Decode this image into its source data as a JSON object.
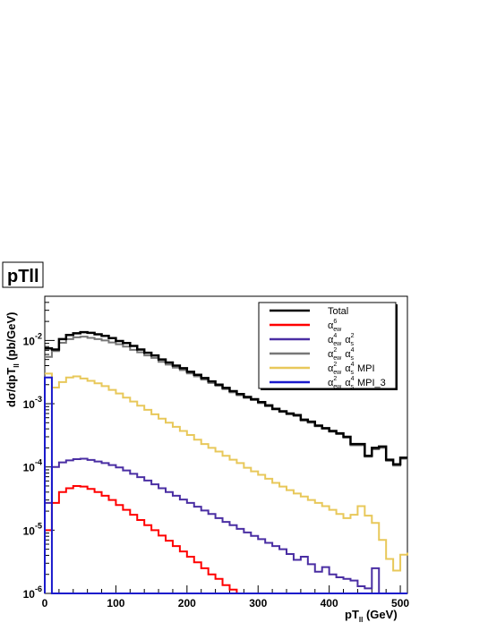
{
  "chart_data": {
    "type": "line",
    "title": "pTll",
    "xlabel": "pT_ll (GeV)",
    "ylabel": "dσ/dpT_ll (pb/GeV)",
    "xlim": [
      0,
      510
    ],
    "ylim": [
      1e-06,
      0.05
    ],
    "yscale": "log",
    "bin_width": 10,
    "x_ticks": [
      0,
      100,
      200,
      300,
      400,
      500
    ],
    "y_ticks": [
      {
        "base": "10",
        "exp": "-6",
        "value": 1e-06
      },
      {
        "base": "10",
        "exp": "-5",
        "value": 1e-05
      },
      {
        "base": "10",
        "exp": "-4",
        "value": 0.0001
      },
      {
        "base": "10",
        "exp": "-3",
        "value": 0.001
      },
      {
        "base": "10",
        "exp": "-2",
        "value": 0.01
      }
    ],
    "legend_position": "top-right",
    "series": [
      {
        "name": "Total",
        "label": {
          "parts": [
            {
              "t": "Total"
            }
          ]
        },
        "color": "#000000",
        "x_start": 0,
        "values": [
          0.0075,
          0.0072,
          0.0105,
          0.0122,
          0.013,
          0.0135,
          0.0132,
          0.0125,
          0.0118,
          0.0109,
          0.0098,
          0.0091,
          0.0082,
          0.0072,
          0.0064,
          0.0058,
          0.005,
          0.00448,
          0.004,
          0.00364,
          0.0032,
          0.00286,
          0.00254,
          0.00225,
          0.002,
          0.00178,
          0.00158,
          0.00142,
          0.00128,
          0.00118,
          0.00106,
          0.00094,
          0.00083,
          0.00076,
          0.0007,
          0.00066,
          0.00056,
          0.00052,
          0.00045,
          0.00041,
          0.00037,
          0.00034,
          0.0003,
          0.00023,
          0.00023,
          0.00015,
          0.0002,
          0.00021,
          0.00013,
          0.00011,
          0.00014
        ]
      },
      {
        "name": "α_ew^6",
        "label": {
          "parts": [
            {
              "t": "α"
            },
            {
              "sub": "ew",
              "sup": "6"
            }
          ]
        },
        "color": "#ff0000",
        "x_start": 0,
        "values": [
          1e-05,
          2.7e-05,
          4e-05,
          4.6e-05,
          5e-05,
          4.9e-05,
          4.5e-05,
          4e-05,
          3.5e-05,
          3e-05,
          2.5e-05,
          2.1e-05,
          1.75e-05,
          1.45e-05,
          1.2e-05,
          1e-05,
          8.2e-06,
          6.8e-06,
          5.6e-06,
          4.6e-06,
          3.8e-06,
          3.1e-06,
          2.5e-06,
          2e-06,
          1.7e-06,
          1.35e-06,
          1.15e-06,
          1e-06,
          1e-06,
          1e-06
        ]
      },
      {
        "name": "α_ew^4 α_s^2",
        "label": {
          "parts": [
            {
              "t": "α"
            },
            {
              "sub": "ew",
              "sup": "4"
            },
            {
              "t": " α"
            },
            {
              "sub": "s",
              "sup": "2"
            }
          ]
        },
        "color": "#4a2ea3",
        "x_start": 0,
        "values": [
          2.7e-05,
          0.0001,
          0.000118,
          0.000127,
          0.000133,
          0.000135,
          0.000129,
          0.000122,
          0.000115,
          0.000107,
          9.8e-05,
          8.8e-05,
          7.8e-05,
          6.9e-05,
          6.1e-05,
          5.3e-05,
          4.6e-05,
          4e-05,
          3.5e-05,
          3.05e-05,
          2.7e-05,
          2.35e-05,
          2.05e-05,
          1.8e-05,
          1.55e-05,
          1.35e-05,
          1.2e-05,
          1.05e-05,
          9.2e-06,
          8.1e-06,
          7.2e-06,
          6.3e-06,
          5.6e-06,
          5e-06,
          4.2e-06,
          3.4e-06,
          3.8e-06,
          2.9e-06,
          2.2e-06,
          2.6e-06,
          2e-06,
          1.8e-06,
          1.7e-06,
          1.6e-06,
          1.3e-06,
          1.2e-06,
          2.5e-06,
          1e-06
        ]
      },
      {
        "name": "α_ew^2 α_s^4",
        "label": {
          "parts": [
            {
              "t": "α"
            },
            {
              "sub": "ew",
              "sup": "2"
            },
            {
              "t": " α"
            },
            {
              "sub": "s",
              "sup": "4"
            }
          ]
        },
        "color": "#777777",
        "x_start": 0,
        "values": [
          0.0055,
          0.0068,
          0.0092,
          0.0105,
          0.0112,
          0.0115,
          0.011,
          0.0105,
          0.01,
          0.0093,
          0.0087,
          0.008,
          0.0071,
          0.0065,
          0.0058,
          0.0053,
          0.0046,
          0.00415,
          0.00372,
          0.0034,
          0.00301,
          0.0027,
          0.0024,
          0.00213,
          0.00191,
          0.0017,
          0.00151,
          0.00136,
          0.00123,
          0.00114,
          0.00102,
          0.00091,
          0.00081,
          0.00074,
          0.00068,
          0.00064,
          0.00054,
          0.0005,
          0.00044,
          0.0004,
          0.00036,
          0.00033,
          0.00029,
          0.00022,
          0.00022,
          0.000145,
          0.00019,
          0.0002,
          0.000125,
          0.000105,
          0.000135
        ]
      },
      {
        "name": "α_ew^2 α_s^4 MPI",
        "label": {
          "parts": [
            {
              "t": "α"
            },
            {
              "sub": "ew",
              "sup": "2"
            },
            {
              "t": " α"
            },
            {
              "sub": "s",
              "sup": "4"
            },
            {
              "t": " MPI"
            }
          ]
        },
        "color": "#e8c85a",
        "x_start": 0,
        "values": [
          0.003,
          0.0018,
          0.0022,
          0.0026,
          0.0027,
          0.0025,
          0.0023,
          0.0021,
          0.0019,
          0.00165,
          0.00145,
          0.00125,
          0.00108,
          0.00093,
          0.0008,
          0.00068,
          0.00058,
          0.0005,
          0.00043,
          0.00037,
          0.00032,
          0.00027,
          0.00023,
          0.0002,
          0.000175,
          0.00015,
          0.00013,
          0.000115,
          9.7e-05,
          8.5e-05,
          7.5e-05,
          6.5e-05,
          5.6e-05,
          4.9e-05,
          4.3e-05,
          3.8e-05,
          3.4e-05,
          3e-05,
          2.7e-05,
          2.4e-05,
          2.1e-05,
          1.8e-05,
          1.55e-05,
          1.75e-05,
          2.4e-05,
          1.7e-05,
          1.3e-05,
          7e-06,
          3.5e-06,
          2.3e-06,
          4.1e-06,
          4.4e-06
        ]
      },
      {
        "name": "α_ew^2 α_s^4 MPI_3",
        "label": {
          "parts": [
            {
              "t": "α"
            },
            {
              "sub": "ew",
              "sup": "2"
            },
            {
              "t": " α"
            },
            {
              "sub": "s",
              "sup": "4"
            },
            {
              "t": " MPI_3"
            }
          ]
        },
        "color": "#1a1acc",
        "x_start": 0,
        "values": [
          0.0026
        ]
      }
    ]
  }
}
